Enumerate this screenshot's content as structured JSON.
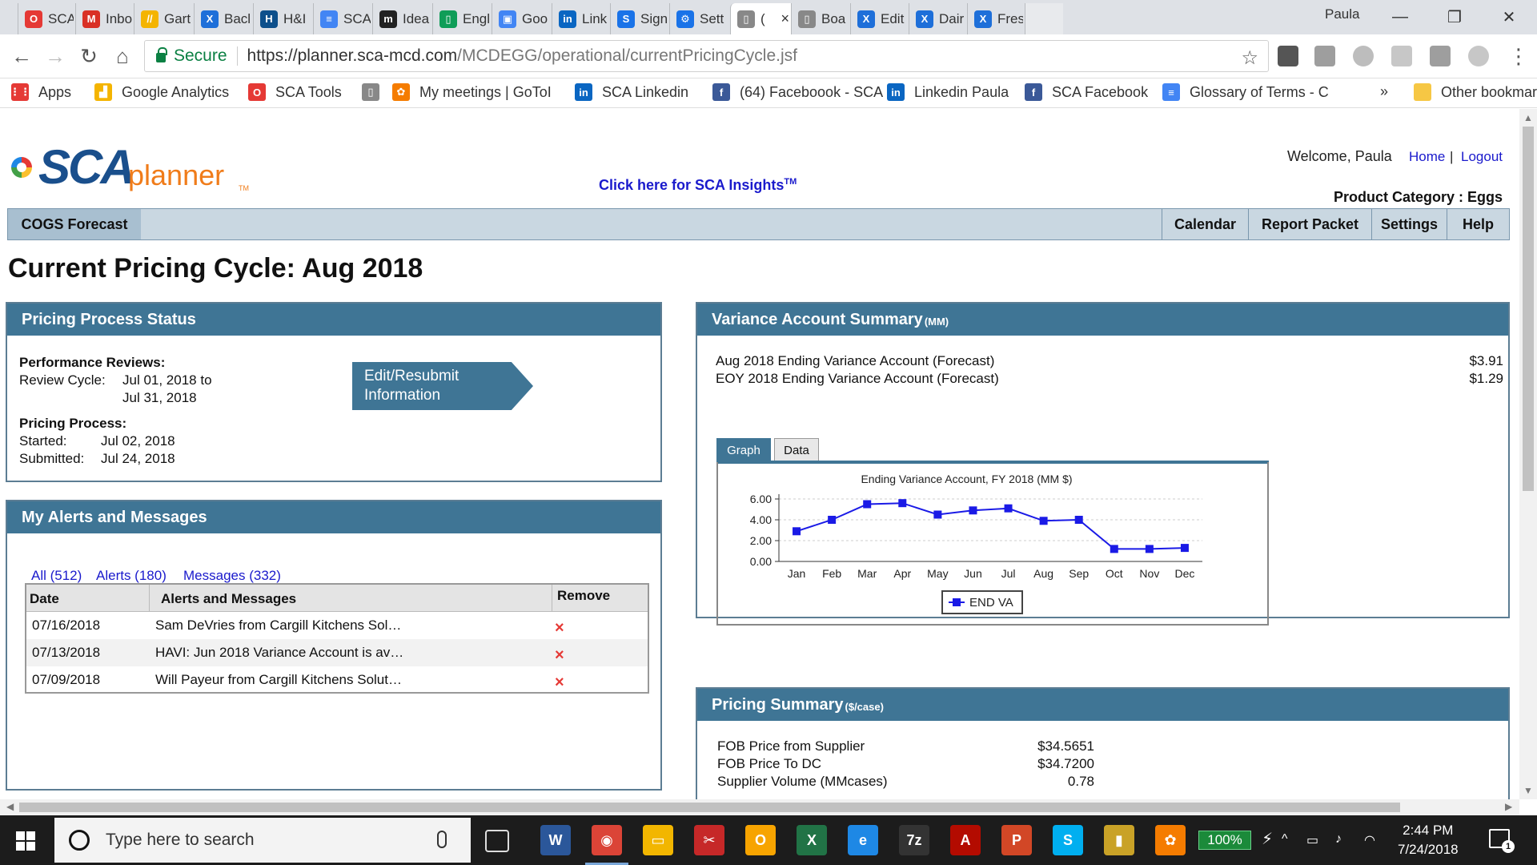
{
  "browser": {
    "tabs": [
      {
        "label": "SCA",
        "color": "#e53935",
        "glyph": "O"
      },
      {
        "label": "Inbo",
        "color": "#d93025",
        "glyph": "M"
      },
      {
        "label": "Gart",
        "color": "#f4b400",
        "glyph": "//"
      },
      {
        "label": "Bacl",
        "color": "#1e6fd9",
        "glyph": "X"
      },
      {
        "label": "H&I",
        "color": "#0d4f8b",
        "glyph": "H"
      },
      {
        "label": "SCA",
        "color": "#4285f4",
        "glyph": "≡"
      },
      {
        "label": "Idea",
        "color": "#222222",
        "glyph": "m"
      },
      {
        "label": "Engl",
        "color": "#0f9d58",
        "glyph": "▯"
      },
      {
        "label": "Goo",
        "color": "#4285f4",
        "glyph": "▣"
      },
      {
        "label": "Link",
        "color": "#0a66c2",
        "glyph": "in"
      },
      {
        "label": "Sign",
        "color": "#1a73e8",
        "glyph": "S"
      },
      {
        "label": "Sett",
        "color": "#1a73e8",
        "glyph": "⚙"
      },
      {
        "label": "(",
        "color": "#888888",
        "glyph": "▯"
      },
      {
        "label": "Boa",
        "color": "#888888",
        "glyph": "▯"
      },
      {
        "label": "Edit",
        "color": "#1e6fd9",
        "glyph": "X"
      },
      {
        "label": "Dair",
        "color": "#1e6fd9",
        "glyph": "X"
      },
      {
        "label": "Fres",
        "color": "#1e6fd9",
        "glyph": "X"
      }
    ],
    "user": "Paula",
    "secure_label": "Secure",
    "url_base": "https://planner.sca-mcd.com",
    "url_path": "/MCDEGG/operational/currentPricingCycle.jsf",
    "bookmarks": [
      {
        "label": "Apps",
        "color": "#e53935",
        "glyph": "⋮⋮"
      },
      {
        "label": "Google Analytics",
        "color": "#f4b400",
        "glyph": "▟"
      },
      {
        "label": "SCA Tools",
        "color": "#e53935",
        "glyph": "O"
      },
      {
        "label": "",
        "color": "#888888",
        "glyph": "▯"
      },
      {
        "label": "My meetings | GoToI",
        "color": "#f57c00",
        "glyph": "✿"
      },
      {
        "label": "SCA Linkedin",
        "color": "#0a66c2",
        "glyph": "in"
      },
      {
        "label": "(64) Faceboook - SCA",
        "color": "#3b5998",
        "glyph": "f"
      },
      {
        "label": "Linkedin Paula",
        "color": "#0a66c2",
        "glyph": "in"
      },
      {
        "label": "SCA Facebook",
        "color": "#3b5998",
        "glyph": "f"
      },
      {
        "label": "Glossary of Terms - C",
        "color": "#4285f4",
        "glyph": "≡"
      }
    ],
    "more_chevron": "»",
    "other_bookmarks": "Other bookmarks"
  },
  "header": {
    "logo_main": "SCA",
    "logo_sub": "planner",
    "logo_tm": "TM",
    "insights": "Click here for SCA Insights",
    "insights_tm": "TM",
    "welcome": "Welcome, Paula",
    "home": "Home",
    "separator": "|",
    "logout": "Logout",
    "product_category": "Product Category : Eggs"
  },
  "nav": {
    "cogs": "COGS Forecast",
    "calendar": "Calendar",
    "report_packet": "Report Packet",
    "settings": "Settings",
    "help": "Help"
  },
  "page_title": "Current Pricing Cycle: Aug 2018",
  "pricing_status": {
    "title": "Pricing Process Status",
    "perf_label": "Performance Reviews:",
    "review_cycle_label": "Review Cycle:",
    "review_start": "Jul 01, 2018 to",
    "review_end": "Jul 31, 2018",
    "process_label": "Pricing Process:",
    "started_label": "Started:",
    "started": "Jul 02, 2018",
    "submitted_label": "Submitted:",
    "submitted": "Jul 24, 2018",
    "button_line1": "Edit/Resubmit",
    "button_line2": "Information"
  },
  "alerts": {
    "title": "My Alerts and Messages",
    "filter_all": "All (512)",
    "filter_alerts": "Alerts (180)",
    "filter_messages": "Messages (332)",
    "col_date": "Date",
    "col_msg": "Alerts and Messages",
    "col_remove": "Remove",
    "rows": [
      {
        "date": "07/16/2018",
        "msg": "Sam DeVries from Cargill Kitchens Sol…",
        "remove": "×"
      },
      {
        "date": "07/13/2018",
        "msg": "HAVI: Jun 2018 Variance Account is av…",
        "remove": "×"
      },
      {
        "date": "07/09/2018",
        "msg": "Will Payeur from Cargill Kitchens Solut…",
        "remove": "×"
      }
    ]
  },
  "variance": {
    "title": "Variance Account Summary",
    "title_unit": "(MM)",
    "row1_label": "Aug 2018 Ending Variance Account (Forecast)",
    "row1_value": "$3.91",
    "row2_label": "EOY 2018 Ending Variance Account (Forecast)",
    "row2_value": "$1.29",
    "tab_graph": "Graph",
    "tab_data": "Data"
  },
  "chart_data": {
    "type": "line",
    "title": "Ending Variance Account, FY 2018 (MM $)",
    "categories": [
      "Jan",
      "Feb",
      "Mar",
      "Apr",
      "May",
      "Jun",
      "Jul",
      "Aug",
      "Sep",
      "Oct",
      "Nov",
      "Dec"
    ],
    "series": [
      {
        "name": "END VA",
        "color": "#1a1ae6",
        "values": [
          2.9,
          4.0,
          5.5,
          5.6,
          4.5,
          4.9,
          5.1,
          3.9,
          4.0,
          1.2,
          1.2,
          1.3
        ]
      }
    ],
    "ylim": [
      0,
      6
    ],
    "yticks": [
      "0.00",
      "2.00",
      "4.00",
      "6.00"
    ],
    "grid": true,
    "legend": "bottom"
  },
  "pricing_summary": {
    "title": "Pricing Summary",
    "title_unit": "($/case)",
    "rows": [
      {
        "label": "FOB Price from Supplier",
        "value": "$34.5651"
      },
      {
        "label": "FOB Price To DC",
        "value": "$34.7200"
      },
      {
        "label": "Supplier Volume (MMcases)",
        "value": "0.78"
      }
    ]
  },
  "taskbar": {
    "search_placeholder": "Type here to search",
    "apps": [
      {
        "name": "word",
        "color": "#2b579a",
        "glyph": "W"
      },
      {
        "name": "chrome",
        "color": "#db4437",
        "glyph": "◉"
      },
      {
        "name": "explorer",
        "color": "#f2b600",
        "glyph": "▭"
      },
      {
        "name": "snip",
        "color": "#c62828",
        "glyph": "✂"
      },
      {
        "name": "outlook-like",
        "color": "#f7a400",
        "glyph": "O"
      },
      {
        "name": "excel",
        "color": "#217346",
        "glyph": "X"
      },
      {
        "name": "ie",
        "color": "#1e88e5",
        "glyph": "e"
      },
      {
        "name": "7zip",
        "color": "#333333",
        "glyph": "7z"
      },
      {
        "name": "acrobat",
        "color": "#b30b00",
        "glyph": "A"
      },
      {
        "name": "powerpoint",
        "color": "#d24726",
        "glyph": "P"
      },
      {
        "name": "skype",
        "color": "#00aff0",
        "glyph": "S"
      },
      {
        "name": "sticky",
        "color": "#c9a227",
        "glyph": "▮"
      },
      {
        "name": "gotomeeting",
        "color": "#f57c00",
        "glyph": "✿"
      }
    ],
    "battery": "100%",
    "time": "2:44 PM",
    "date": "7/24/2018",
    "notifications": "1"
  }
}
